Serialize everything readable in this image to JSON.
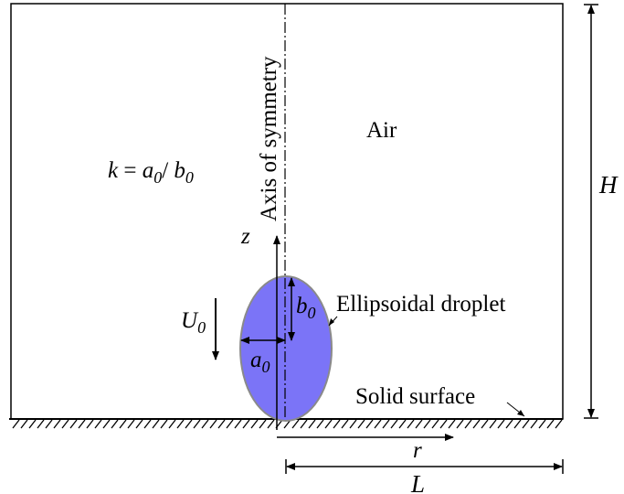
{
  "labels": {
    "axis_of_symmetry": "Axis of symmetry",
    "air": "Air",
    "ratio_k": "k",
    "ratio_eq": " = ",
    "ratio_a": "a",
    "ratio_a_sub": "0",
    "ratio_slash": "/ ",
    "ratio_b": "b",
    "ratio_b_sub": "0",
    "height": "H",
    "z_axis": "z",
    "velocity": "U",
    "velocity_sub": "0",
    "semi_axis_b": "b",
    "semi_axis_b_sub": "0",
    "semi_axis_a": "a",
    "semi_axis_a_sub": "0",
    "droplet": "Ellipsoidal droplet",
    "solid_surface": "Solid surface",
    "r_axis": "r",
    "length": "L"
  },
  "colors": {
    "droplet_fill": "#7b74f7",
    "droplet_stroke": "#8a8a8a",
    "line": "#000000"
  }
}
